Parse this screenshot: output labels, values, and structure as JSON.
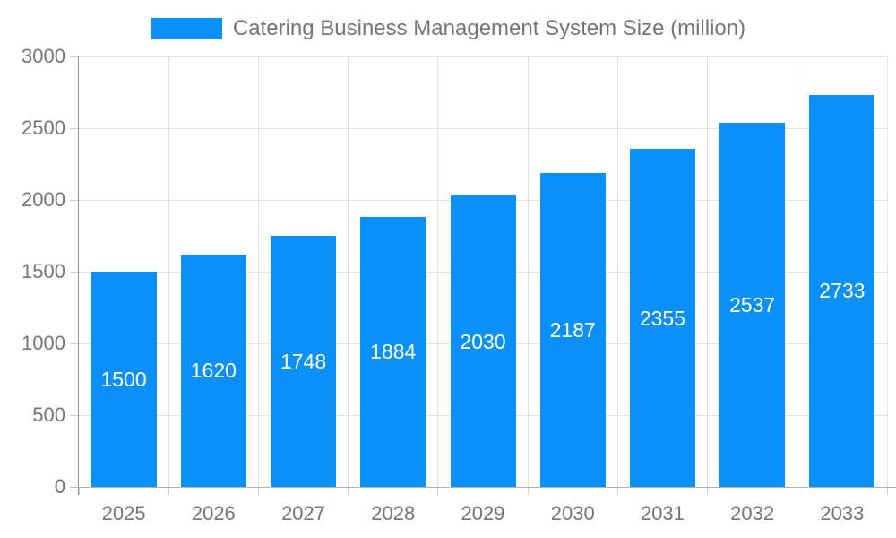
{
  "chart_data": {
    "type": "bar",
    "title": "Catering Business Management System Size (million)",
    "categories": [
      "2025",
      "2026",
      "2027",
      "2028",
      "2029",
      "2030",
      "2031",
      "2032",
      "2033"
    ],
    "values": [
      1500,
      1620,
      1748,
      1884,
      2030,
      2187,
      2355,
      2537,
      2733
    ],
    "series": [
      {
        "name": "Catering Business Management System Size (million)",
        "values": [
          1500,
          1620,
          1748,
          1884,
          2030,
          2187,
          2355,
          2537,
          2733
        ]
      }
    ],
    "xlabel": "",
    "ylabel": "",
    "ylim": [
      0,
      3000
    ],
    "yticks": [
      0,
      500,
      1000,
      1500,
      2000,
      2500,
      3000
    ],
    "grid": true,
    "legend_position": "top",
    "value_labels": "centered-inside-bars"
  },
  "colors": {
    "bar": "#0b90f9",
    "text": "#757575",
    "grid": "#e3e3e3",
    "tick": "#cdcdcd",
    "y_axis_line": "#909090",
    "x_axis_line": "#b3b3b3",
    "value_label": "#ffffff",
    "background": "#ffffff"
  }
}
